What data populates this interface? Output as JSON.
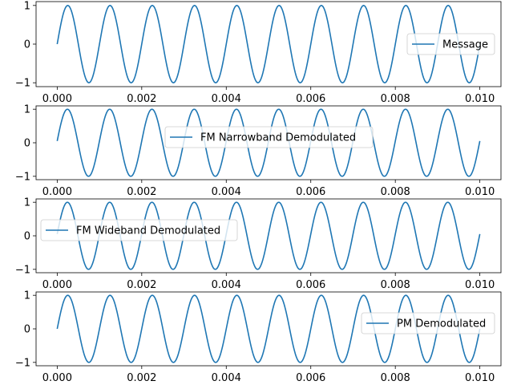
{
  "chart_data": [
    {
      "type": "line",
      "x_range": [
        0,
        0.01
      ],
      "ylim": [
        -1.1,
        1.1
      ],
      "xticks": [
        "0.000",
        "0.002",
        "0.004",
        "0.006",
        "0.008",
        "0.010"
      ],
      "xtick_values": [
        0,
        0.002,
        0.004,
        0.006,
        0.008,
        0.01
      ],
      "yticks": [
        "1",
        "0",
        "−1"
      ],
      "ytick_values": [
        1,
        0,
        -1
      ],
      "series": [
        {
          "name": "Message",
          "frequency_hz": 1000,
          "phase_deg": 0,
          "color": "#1f77b4"
        }
      ],
      "legend_position": "right",
      "grid": false
    },
    {
      "type": "line",
      "x_range": [
        0,
        0.01
      ],
      "ylim": [
        -1.1,
        1.1
      ],
      "xticks": [
        "0.000",
        "0.002",
        "0.004",
        "0.006",
        "0.008",
        "0.010"
      ],
      "xtick_values": [
        0,
        0.002,
        0.004,
        0.006,
        0.008,
        0.01
      ],
      "yticks": [
        "1",
        "0",
        "−1"
      ],
      "ytick_values": [
        1,
        0,
        -1
      ],
      "series": [
        {
          "name": "FM Narrowband Demodulated",
          "frequency_hz": 1000,
          "phase_deg": 3,
          "color": "#1f77b4"
        }
      ],
      "legend_position": "upper center",
      "grid": false
    },
    {
      "type": "line",
      "x_range": [
        0,
        0.01
      ],
      "ylim": [
        -1.1,
        1.1
      ],
      "xticks": [
        "0.000",
        "0.002",
        "0.004",
        "0.006",
        "0.008",
        "0.010"
      ],
      "xtick_values": [
        0,
        0.002,
        0.004,
        0.006,
        0.008,
        0.01
      ],
      "yticks": [
        "1",
        "0",
        "−1"
      ],
      "ytick_values": [
        1,
        0,
        -1
      ],
      "series": [
        {
          "name": "FM Wideband Demodulated",
          "frequency_hz": 1000,
          "phase_deg": 3,
          "color": "#1f77b4"
        }
      ],
      "legend_position": "left",
      "grid": false
    },
    {
      "type": "line",
      "x_range": [
        0,
        0.01
      ],
      "ylim": [
        -1.1,
        1.1
      ],
      "xticks": [
        "0.000",
        "0.002",
        "0.004",
        "0.006",
        "0.008",
        "0.010"
      ],
      "xtick_values": [
        0,
        0.002,
        0.004,
        0.006,
        0.008,
        0.01
      ],
      "yticks": [
        "1",
        "0",
        "−1"
      ],
      "ytick_values": [
        1,
        0,
        -1
      ],
      "series": [
        {
          "name": "PM Demodulated",
          "frequency_hz": 1000,
          "phase_deg": 0,
          "color": "#1f77b4"
        }
      ],
      "legend_position": "lower right",
      "grid": false
    }
  ]
}
